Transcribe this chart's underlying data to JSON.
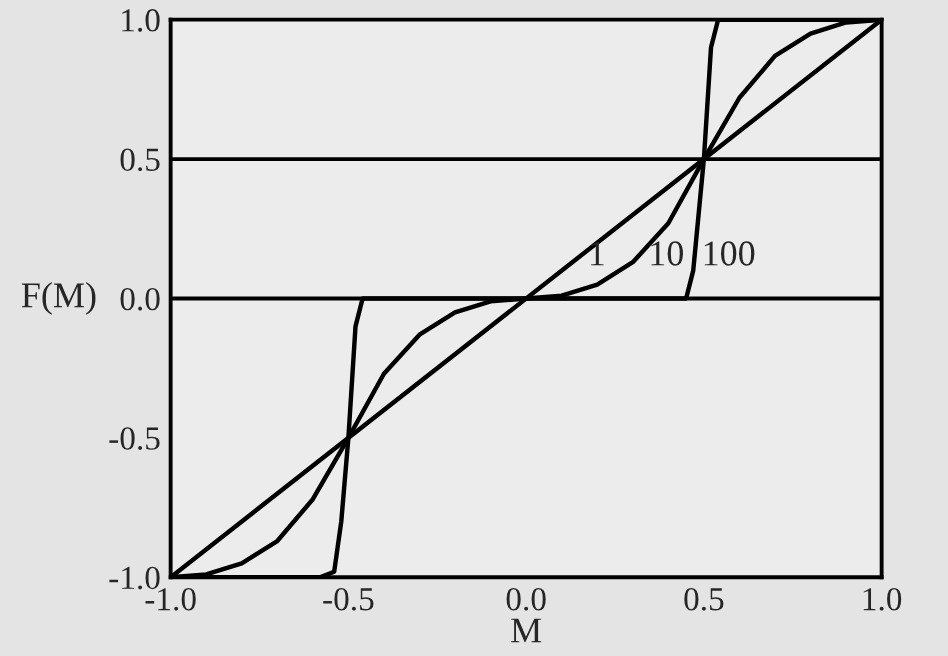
{
  "chart_data": {
    "type": "line",
    "xlabel": "M",
    "ylabel": "F(M)",
    "xlim": [
      -1.0,
      1.0
    ],
    "ylim": [
      -1.0,
      1.0
    ],
    "xticks": [
      {
        "value": -1,
        "label": "-1.0"
      },
      -0.5,
      {
        "value": 0,
        "label": "0.0"
      },
      0.5,
      {
        "value": 1,
        "label": "1.0"
      }
    ],
    "yticks": [
      {
        "value": -1,
        "label": "-1.0"
      },
      -0.5,
      {
        "value": 0,
        "label": "0.0"
      },
      0.5,
      {
        "value": 1,
        "label": "1.0"
      }
    ],
    "grid": false,
    "legend": false,
    "marker": "none",
    "line_style": "solid",
    "series": [
      {
        "color": "#000000",
        "x": [
          -1.0,
          1.0
        ],
        "values": [
          -1.0,
          1.0
        ]
      },
      {
        "color": "#000000",
        "x": [
          -1.0,
          -0.9,
          -0.8,
          -0.7,
          -0.6,
          -0.5,
          -0.4,
          -0.3,
          -0.2,
          -0.1,
          0.0,
          0.1,
          0.2,
          0.3,
          0.4,
          0.5,
          0.6,
          0.7,
          0.8,
          0.9,
          1.0
        ],
        "values": [
          -1.0,
          -0.99,
          -0.95,
          -0.87,
          -0.72,
          -0.5,
          -0.27,
          -0.13,
          -0.05,
          -0.01,
          0.0,
          0.01,
          0.05,
          0.13,
          0.27,
          0.5,
          0.72,
          0.87,
          0.95,
          0.99,
          1.0
        ]
      },
      {
        "color": "#000000",
        "x": [
          -1.0,
          -0.58,
          -0.54,
          -0.52,
          -0.5,
          -0.48,
          -0.46,
          0.45,
          0.47,
          0.5,
          0.52,
          0.54,
          1.0
        ],
        "values": [
          -1.0,
          -1.0,
          -0.98,
          -0.8,
          -0.5,
          -0.1,
          0.0,
          0.0,
          0.1,
          0.5,
          0.9,
          1.0,
          1.0
        ]
      }
    ],
    "ref_lines": [
      {
        "axis": "y",
        "value": 0.0,
        "color": "#000000"
      },
      {
        "axis": "y",
        "value": 0.5,
        "color": "#000000"
      }
    ],
    "annotations": [
      {
        "text": "1",
        "x": 0.15,
        "y": 0.15
      },
      {
        "text": "10",
        "x": 0.32,
        "y": 0.15
      },
      {
        "text": "100",
        "x": 0.47,
        "y": 0.15
      }
    ]
  }
}
